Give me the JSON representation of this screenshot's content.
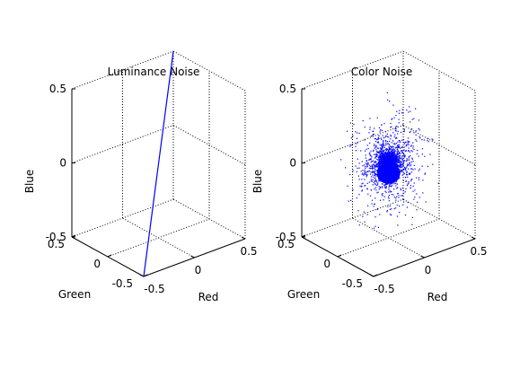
{
  "colors": {
    "background": "#ffffff",
    "axes": "#000000",
    "data": "#0000ff"
  },
  "chart_data": [
    {
      "type": "line3d",
      "title": "Luminance Noise",
      "xlabel": "Red",
      "ylabel": "Green",
      "zlabel": "Blue",
      "xlim": [
        -0.5,
        0.5
      ],
      "ylim": [
        -0.5,
        0.5
      ],
      "zlim": [
        -0.5,
        0.5
      ],
      "xticks": [
        "-0.5",
        "0",
        "0.5"
      ],
      "yticks": [
        "-0.5",
        "0",
        "0.5"
      ],
      "zticks": [
        "-0.5",
        "0",
        "0.5"
      ],
      "grid": true,
      "series": [
        {
          "points": [
            [
              -0.5,
              -0.5,
              -0.5
            ],
            [
              0.5,
              0.5,
              0.5
            ]
          ]
        }
      ]
    },
    {
      "type": "scatter3d",
      "title": "Color Noise",
      "xlabel": "Red",
      "ylabel": "Green",
      "zlabel": "Blue",
      "xlim": [
        -0.5,
        0.5
      ],
      "ylim": [
        -0.5,
        0.5
      ],
      "zlim": [
        -0.5,
        0.5
      ],
      "xticks": [
        "-0.5",
        "0",
        "0.5"
      ],
      "yticks": [
        "-0.5",
        "0",
        "0.5"
      ],
      "zticks": [
        "-0.5",
        "0",
        "0.5"
      ],
      "grid": true,
      "series": [
        {
          "distribution": "dense cluster centered near the origin, sparse outliers out to about ±0.4 in each channel"
        }
      ]
    }
  ]
}
